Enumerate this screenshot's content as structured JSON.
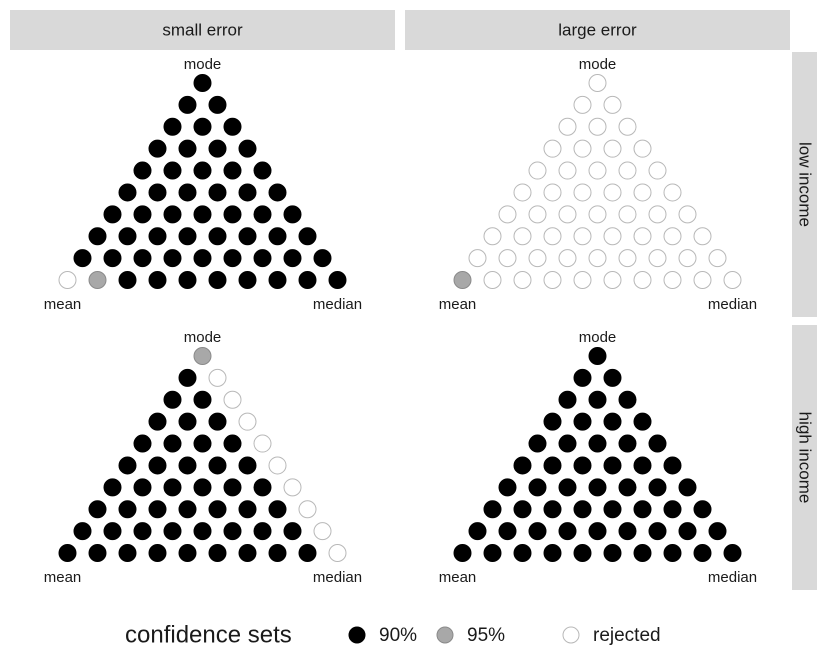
{
  "chart_data": {
    "type": "dot-triangle",
    "columns": [
      "small error",
      "large error"
    ],
    "rows": [
      "low income",
      "high income"
    ],
    "vertex_labels": {
      "top": "mode",
      "left": "mean",
      "right": "median"
    },
    "legend": {
      "title": "confidence sets",
      "entries": [
        {
          "label": "90%",
          "fill": "#000000",
          "stroke": "#000000"
        },
        {
          "label": "95%",
          "fill": "#a8a8a8",
          "stroke": "#8a8a8a"
        },
        {
          "label": "rejected",
          "fill": "#ffffff",
          "stroke": "#b8b8b8"
        }
      ]
    },
    "panels": [
      {
        "column": 0,
        "row": 0,
        "dots": [
          [
            0
          ],
          [
            0,
            0
          ],
          [
            0,
            0,
            0
          ],
          [
            0,
            0,
            0,
            0
          ],
          [
            0,
            0,
            0,
            0,
            0
          ],
          [
            0,
            0,
            0,
            0,
            0,
            0
          ],
          [
            0,
            0,
            0,
            0,
            0,
            0,
            0
          ],
          [
            0,
            0,
            0,
            0,
            0,
            0,
            0,
            0
          ],
          [
            0,
            0,
            0,
            0,
            0,
            0,
            0,
            0,
            0
          ],
          [
            2,
            1,
            0,
            0,
            0,
            0,
            0,
            0,
            0,
            0
          ]
        ]
      },
      {
        "column": 1,
        "row": 0,
        "dots": [
          [
            2
          ],
          [
            2,
            2
          ],
          [
            2,
            2,
            2
          ],
          [
            2,
            2,
            2,
            2
          ],
          [
            2,
            2,
            2,
            2,
            2
          ],
          [
            2,
            2,
            2,
            2,
            2,
            2
          ],
          [
            2,
            2,
            2,
            2,
            2,
            2,
            2
          ],
          [
            2,
            2,
            2,
            2,
            2,
            2,
            2,
            2
          ],
          [
            2,
            2,
            2,
            2,
            2,
            2,
            2,
            2,
            2
          ],
          [
            1,
            2,
            2,
            2,
            2,
            2,
            2,
            2,
            2,
            2
          ]
        ]
      },
      {
        "column": 0,
        "row": 1,
        "dots": [
          [
            1
          ],
          [
            0,
            2
          ],
          [
            0,
            0,
            2
          ],
          [
            0,
            0,
            0,
            2
          ],
          [
            0,
            0,
            0,
            0,
            2
          ],
          [
            0,
            0,
            0,
            0,
            0,
            2
          ],
          [
            0,
            0,
            0,
            0,
            0,
            0,
            2
          ],
          [
            0,
            0,
            0,
            0,
            0,
            0,
            0,
            2
          ],
          [
            0,
            0,
            0,
            0,
            0,
            0,
            0,
            0,
            2
          ],
          [
            0,
            0,
            0,
            0,
            0,
            0,
            0,
            0,
            0,
            2
          ]
        ]
      },
      {
        "column": 1,
        "row": 1,
        "dots": [
          [
            0
          ],
          [
            0,
            0
          ],
          [
            0,
            0,
            0
          ],
          [
            0,
            0,
            0,
            0
          ],
          [
            0,
            0,
            0,
            0,
            0
          ],
          [
            0,
            0,
            0,
            0,
            0,
            0
          ],
          [
            0,
            0,
            0,
            0,
            0,
            0,
            0
          ],
          [
            0,
            0,
            0,
            0,
            0,
            0,
            0,
            0
          ],
          [
            0,
            0,
            0,
            0,
            0,
            0,
            0,
            0,
            0
          ],
          [
            0,
            0,
            0,
            0,
            0,
            0,
            0,
            0,
            0,
            0
          ]
        ]
      }
    ]
  }
}
